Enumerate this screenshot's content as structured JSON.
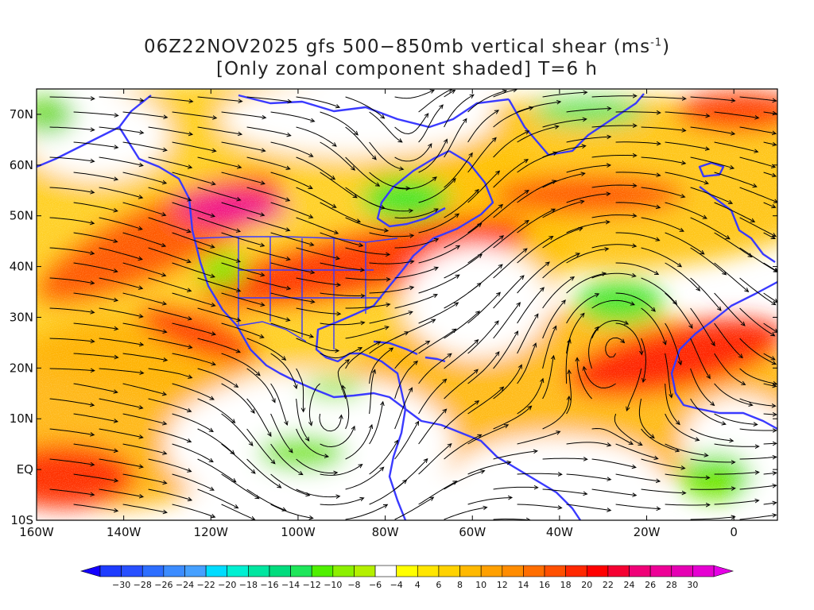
{
  "title": {
    "line1": "06Z22NOV2025 gfs 500−850mb vertical shear (ms",
    "line1_sup": "-1",
    "line1_end": ")",
    "line2": "[Only zonal component shaded] T=6 h"
  },
  "map": {
    "lon_range": [
      -160,
      10
    ],
    "lat_range": [
      -10,
      75
    ],
    "lon_ticks": [
      {
        "value": -160,
        "label": "160W"
      },
      {
        "value": -140,
        "label": "140W"
      },
      {
        "value": -120,
        "label": "120W"
      },
      {
        "value": -100,
        "label": "100W"
      },
      {
        "value": -80,
        "label": "80W"
      },
      {
        "value": -60,
        "label": "60W"
      },
      {
        "value": -40,
        "label": "40W"
      },
      {
        "value": -20,
        "label": "20W"
      },
      {
        "value": 0,
        "label": "0"
      }
    ],
    "lat_ticks": [
      {
        "value": 70,
        "label": "70N"
      },
      {
        "value": 60,
        "label": "60N"
      },
      {
        "value": 50,
        "label": "50N"
      },
      {
        "value": 40,
        "label": "40N"
      },
      {
        "value": 30,
        "label": "30N"
      },
      {
        "value": 20,
        "label": "20N"
      },
      {
        "value": 10,
        "label": "10N"
      },
      {
        "value": 0,
        "label": "EQ"
      },
      {
        "value": -10,
        "label": "10S"
      }
    ],
    "coast_color": "#3a3aff",
    "streamline_color": "#000000"
  },
  "colorbar": {
    "labels": [
      "−30",
      "−28",
      "−26",
      "−24",
      "−22",
      "−20",
      "−18",
      "−16",
      "−14",
      "−12",
      "−10",
      "−8",
      "−6",
      "−4",
      "4",
      "6",
      "8",
      "10",
      "12",
      "14",
      "16",
      "18",
      "20",
      "22",
      "24",
      "26",
      "28",
      "30"
    ],
    "colors": [
      "#1e3cff",
      "#2850ff",
      "#2d6eff",
      "#3c8cff",
      "#46a0ff",
      "#00dcff",
      "#00f0d2",
      "#00e6a0",
      "#00dc7d",
      "#1ee65a",
      "#50f000",
      "#8cf000",
      "#b4f000",
      "#ffffff",
      "#ffff00",
      "#ffe600",
      "#ffd200",
      "#ffb900",
      "#ffa000",
      "#ff8c00",
      "#ff6e00",
      "#ff5000",
      "#ff2800",
      "#ff0000",
      "#f50032",
      "#f00078",
      "#ee0097",
      "#e600b4",
      "#e600d2"
    ],
    "under_color": "#1400ff",
    "over_color": "#e600e6"
  }
}
